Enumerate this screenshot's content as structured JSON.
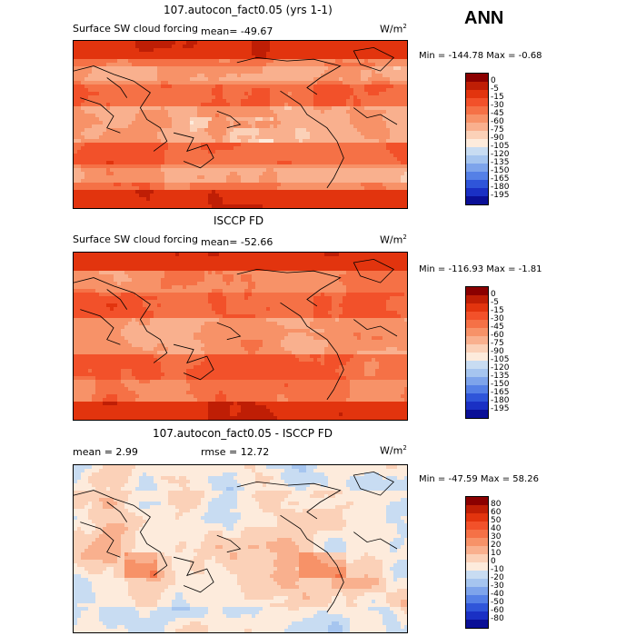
{
  "season": "ANN",
  "units_text": "W/m",
  "units_sup": "2",
  "panels": [
    {
      "id": "model",
      "title": "107.autocon_fact0.05 (yrs 1-1)",
      "variable": "Surface SW cloud forcing",
      "mean_text": "mean=  -49.67",
      "min_max_text": "Min = -144.78  Max =  -0.68"
    },
    {
      "id": "obs",
      "title": "ISCCP FD",
      "variable": "Surface SW cloud forcing",
      "mean_text": "mean=  -52.66",
      "min_max_text": "Min = -116.93  Max =  -1.81"
    },
    {
      "id": "diff",
      "title": "107.autocon_fact0.05 - ISCCP FD",
      "mean_text": "mean =    2.99",
      "rmse_text": "rmse =   12.72",
      "min_max_text": "Min = -47.59  Max =  58.26"
    }
  ],
  "chart_data": [
    {
      "type": "heatmap",
      "title": "107.autocon_fact0.05 (yrs 1-1)",
      "variable": "Surface SW cloud forcing",
      "units": "W/m2",
      "mean": -49.67,
      "min": -144.78,
      "max": -0.68,
      "levels": [
        "0",
        "-5",
        "-15",
        "-30",
        "-45",
        "-60",
        "-75",
        "-90",
        "-105",
        "-120",
        "-135",
        "-150",
        "-165",
        "-180",
        "-195"
      ],
      "colors": [
        "#8b0000",
        "#bf1e05",
        "#e2340e",
        "#f2512a",
        "#f57146",
        "#f79268",
        "#f9b08e",
        "#fbd1b8",
        "#fdebdc",
        "#c8dcf2",
        "#a6c5ef",
        "#7ea4eb",
        "#5580e6",
        "#2f55d9",
        "#1a30c4",
        "#0a0f96"
      ]
    },
    {
      "type": "heatmap",
      "title": "ISCCP FD",
      "variable": "Surface SW cloud forcing",
      "units": "W/m2",
      "mean": -52.66,
      "min": -116.93,
      "max": -1.81,
      "levels": [
        "0",
        "-5",
        "-15",
        "-30",
        "-45",
        "-60",
        "-75",
        "-90",
        "-105",
        "-120",
        "-135",
        "-150",
        "-165",
        "-180",
        "-195"
      ],
      "colors": [
        "#8b0000",
        "#bf1e05",
        "#e2340e",
        "#f2512a",
        "#f57146",
        "#f79268",
        "#f9b08e",
        "#fbd1b8",
        "#fdebdc",
        "#c8dcf2",
        "#a6c5ef",
        "#7ea4eb",
        "#5580e6",
        "#2f55d9",
        "#1a30c4",
        "#0a0f96"
      ]
    },
    {
      "type": "heatmap",
      "title": "107.autocon_fact0.05 - ISCCP FD",
      "units": "W/m2",
      "mean": 2.99,
      "rmse": 12.72,
      "min": -47.59,
      "max": 58.26,
      "levels": [
        "80",
        "60",
        "50",
        "40",
        "30",
        "20",
        "10",
        "0",
        "-10",
        "-20",
        "-30",
        "-40",
        "-50",
        "-60",
        "-80"
      ],
      "colors": [
        "#8b0000",
        "#bf1e05",
        "#e2340e",
        "#f2512a",
        "#f57146",
        "#f79268",
        "#f9b08e",
        "#fbd1b8",
        "#fdebdc",
        "#c8dcf2",
        "#a6c5ef",
        "#7ea4eb",
        "#5580e6",
        "#2f55d9",
        "#1a30c4",
        "#0a0f96"
      ]
    }
  ]
}
